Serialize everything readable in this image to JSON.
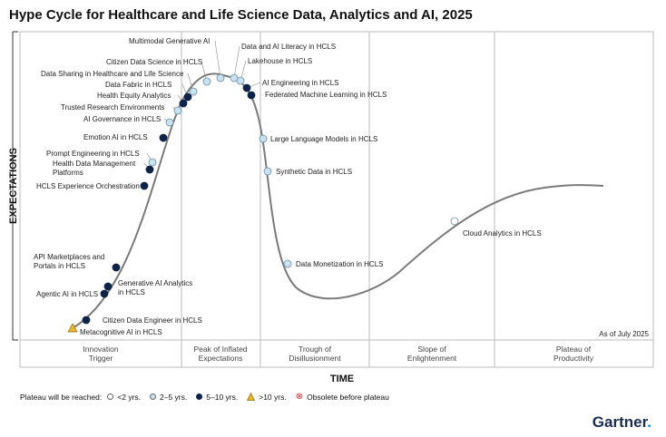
{
  "title": "Hype Cycle for Healthcare and Life Science Data, Analytics and AI, 2025",
  "brand": "Gartner",
  "brand_dot": ".",
  "as_of": "As of July 2025",
  "colors": {
    "lt2": "#ffffff",
    "y2to5": "#c7e3f2",
    "y5to10": "#0d2349",
    "gt10": "#e8b828",
    "curve": "#7a7a7a"
  },
  "legend": {
    "title": "Plateau will be reached:",
    "items": [
      {
        "key": "lt2",
        "label": "<2 yrs."
      },
      {
        "key": "y2to5",
        "label": "2–5 yrs."
      },
      {
        "key": "y5to10",
        "label": "5–10 yrs."
      },
      {
        "key": "gt10",
        "label": ">10 yrs."
      },
      {
        "key": "obsolete",
        "label": "Obsolete before plateau"
      }
    ]
  },
  "chart_data": {
    "type": "scatter",
    "title": "Hype Cycle for Healthcare and Life Science Data, Analytics and AI, 2025",
    "xlabel": "TIME",
    "ylabel": "EXPECTATIONS",
    "phases": [
      {
        "name": "Innovation\nTrigger"
      },
      {
        "name": "Peak of Inflated\nExpectations"
      },
      {
        "name": "Trough of\nDisillusionment"
      },
      {
        "name": "Slope of\nEnlightenment"
      },
      {
        "name": "Plateau of\nProductivity"
      }
    ],
    "series": [
      {
        "name": "Metacognitive AI in HCLS",
        "phase": "Innovation Trigger",
        "plateau": "gt10"
      },
      {
        "name": "Citizen Data Engineer in HCLS",
        "phase": "Innovation Trigger",
        "plateau": "y5to10"
      },
      {
        "name": "Agentic AI in HCLS",
        "phase": "Innovation Trigger",
        "plateau": "y5to10"
      },
      {
        "name": "Generative AI Analytics in HCLS",
        "phase": "Innovation Trigger",
        "plateau": "y5to10"
      },
      {
        "name": "API Marketplaces and Portals in HCLS",
        "phase": "Innovation Trigger",
        "plateau": "y5to10"
      },
      {
        "name": "HCLS Experience Orchestration",
        "phase": "Innovation Trigger",
        "plateau": "y5to10"
      },
      {
        "name": "Health Data Management Platforms",
        "phase": "Innovation Trigger",
        "plateau": "y5to10"
      },
      {
        "name": "Prompt Engineering in HCLS",
        "phase": "Innovation Trigger",
        "plateau": "y2to5"
      },
      {
        "name": "Emotion AI in HCLS",
        "phase": "Innovation Trigger",
        "plateau": "y5to10"
      },
      {
        "name": "AI Governance in HCLS",
        "phase": "Innovation Trigger",
        "plateau": "y2to5"
      },
      {
        "name": "Trusted Research Environments",
        "phase": "Innovation Trigger",
        "plateau": "y2to5"
      },
      {
        "name": "Health Equity Analytics",
        "phase": "Peak of Inflated Expectations",
        "plateau": "y5to10"
      },
      {
        "name": "Data Fabric in HCLS",
        "phase": "Peak of Inflated Expectations",
        "plateau": "y5to10"
      },
      {
        "name": "Data Sharing in Healthcare and Life Science",
        "phase": "Peak of Inflated Expectations",
        "plateau": "y2to5"
      },
      {
        "name": "Citizen Data Science in HCLS",
        "phase": "Peak of Inflated Expectations",
        "plateau": "y2to5"
      },
      {
        "name": "Multimodal Generative AI",
        "phase": "Peak of Inflated Expectations",
        "plateau": "y2to5"
      },
      {
        "name": "Data and AI Literacy in HCLS",
        "phase": "Peak of Inflated Expectations",
        "plateau": "y2to5"
      },
      {
        "name": "Lakehouse in HCLS",
        "phase": "Peak of Inflated Expectations",
        "plateau": "y2to5"
      },
      {
        "name": "AI Engineering in HCLS",
        "phase": "Peak of Inflated Expectations",
        "plateau": "y5to10"
      },
      {
        "name": "Federated Machine Learning in HCLS",
        "phase": "Peak of Inflated Expectations",
        "plateau": "y5to10"
      },
      {
        "name": "Large Language Models in HCLS",
        "phase": "Trough of Disillusionment",
        "plateau": "y2to5"
      },
      {
        "name": "Synthetic Data in HCLS",
        "phase": "Trough of Disillusionment",
        "plateau": "y2to5"
      },
      {
        "name": "Data Monetization in HCLS",
        "phase": "Trough of Disillusionment",
        "plateau": "y2to5"
      },
      {
        "name": "Cloud Analytics in HCLS",
        "phase": "Slope of Enlightenment",
        "plateau": "lt2"
      }
    ]
  }
}
